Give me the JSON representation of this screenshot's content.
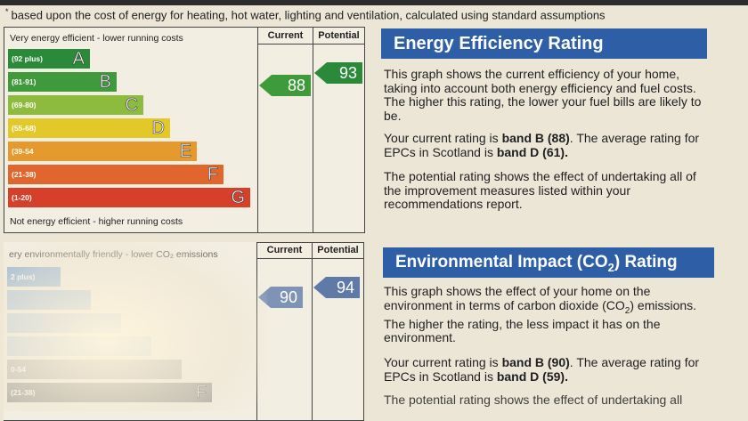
{
  "footnote": "based upon the cost of energy for heating, hot water, lighting and ventilation, calculated using standard assumptions",
  "energy_chart": {
    "top_label": "Very energy efficient - lower running costs",
    "bottom_label": "Not energy efficient - higher running costs",
    "col_current": "Current",
    "col_potential": "Potential",
    "bands": [
      {
        "letter": "A",
        "range": "(92 plus)",
        "color": "#2b8a3a"
      },
      {
        "letter": "B",
        "range": "(81-91)",
        "color": "#3f9a3c"
      },
      {
        "letter": "C",
        "range": "(69-80)",
        "color": "#8dbb3e"
      },
      {
        "letter": "D",
        "range": "(55-68)",
        "color": "#e3c82a"
      },
      {
        "letter": "E",
        "range": "(39-54",
        "color": "#e69a2e"
      },
      {
        "letter": "F",
        "range": "(21-38)",
        "color": "#e0662d"
      },
      {
        "letter": "G",
        "range": "(1-20)",
        "color": "#d6402b"
      }
    ],
    "current": {
      "value": "88",
      "color": "#3f9a3c"
    },
    "potential": {
      "value": "93",
      "color": "#2b8a3a"
    }
  },
  "co2_chart": {
    "top_label": "ery environmentally friendly - lower CO₂ emissions",
    "col_current": "Current",
    "col_potential": "Potential",
    "bands": [
      {
        "letter": "",
        "range": "2 plus)",
        "color": "#8fb3d6"
      },
      {
        "letter": "",
        "range": "",
        "color": "#a9c2dc"
      },
      {
        "letter": "",
        "range": "",
        "color": "#b9cde0"
      },
      {
        "letter": "",
        "range": "",
        "color": "#c6d3de"
      },
      {
        "letter": "",
        "range": "0-54",
        "color": "#b7b6b0"
      },
      {
        "letter": "F",
        "range": "(21-38)",
        "color": "#9a9a96"
      }
    ],
    "current": {
      "value": "90",
      "color": "#7f93b7"
    },
    "potential": {
      "value": "94",
      "color": "#5f7aa6"
    }
  },
  "energy_panel": {
    "title": "Energy Efficiency Rating",
    "p1": "This graph shows the current efficiency of your home, taking into account both energy efficiency and fuel costs. The higher this rating, the lower your fuel bills are likely to be.",
    "p2_pre": "Your current rating is ",
    "p2_band": "band B (88)",
    "p2_mid": ". The average rating for EPCs in Scotland is ",
    "p2_avg": "band D (61).",
    "p3": "The potential rating shows the effect of undertaking all of the improvement measures listed within your recommendations report."
  },
  "co2_panel": {
    "title_main": "Environmental Impact (CO",
    "title_sub": "2",
    "title_end": ") Rating",
    "p1a": "This graph shows the effect of your home on the environment in terms of carbon dioxide (CO",
    "p1sub": "2",
    "p1b": ") emissions. The higher the rating, the less impact it has on the environment.",
    "p2_pre": "Your current rating is ",
    "p2_band": "band B (90)",
    "p2_mid": ". The average rating for EPCs in Scotland is ",
    "p2_avg": "band D (59).",
    "p3": "The potential rating shows the effect of undertaking all"
  }
}
